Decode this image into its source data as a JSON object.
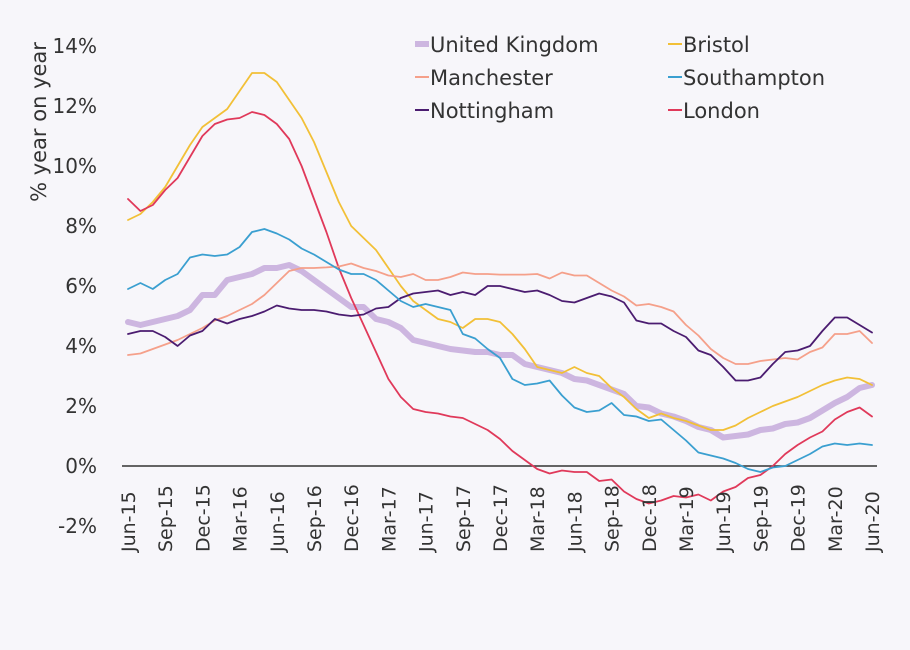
{
  "chart_data": {
    "type": "line",
    "title": "",
    "xlabel": "",
    "ylabel": "% year on year",
    "ylim": [
      -2,
      14
    ],
    "yticks": [
      -2,
      0,
      2,
      4,
      6,
      8,
      10,
      12,
      14
    ],
    "ytick_labels": [
      "-2%",
      "0%",
      "2%",
      "4%",
      "6%",
      "8%",
      "10%",
      "12%",
      "14%"
    ],
    "grid": false,
    "zero_line": true,
    "legend_position": "top-right",
    "x": [
      "Jun-15",
      "Jul-15",
      "Aug-15",
      "Sep-15",
      "Oct-15",
      "Nov-15",
      "Dec-15",
      "Jan-16",
      "Feb-16",
      "Mar-16",
      "Apr-16",
      "May-16",
      "Jun-16",
      "Jul-16",
      "Aug-16",
      "Sep-16",
      "Oct-16",
      "Nov-16",
      "Dec-16",
      "Jan-17",
      "Feb-17",
      "Mar-17",
      "Apr-17",
      "May-17",
      "Jun-17",
      "Jul-17",
      "Aug-17",
      "Sep-17",
      "Oct-17",
      "Nov-17",
      "Dec-17",
      "Jan-18",
      "Feb-18",
      "Mar-18",
      "Apr-18",
      "May-18",
      "Jun-18",
      "Jul-18",
      "Aug-18",
      "Sep-18",
      "Oct-18",
      "Nov-18",
      "Dec-18",
      "Jan-19",
      "Feb-19",
      "Mar-19",
      "Apr-19",
      "May-19",
      "Jun-19",
      "Jul-19",
      "Aug-19",
      "Sep-19",
      "Oct-19",
      "Nov-19",
      "Dec-19",
      "Jan-20",
      "Feb-20",
      "Mar-20",
      "Apr-20",
      "May-20",
      "Jun-20"
    ],
    "xtick_labels": [
      "Jun-15",
      "Sep-15",
      "Dec-15",
      "Mar-16",
      "Jun-16",
      "Sep-16",
      "Dec-16",
      "Mar-17",
      "Jun-17",
      "Sep-17",
      "Dec-17",
      "Mar-18",
      "Jun-18",
      "Sep-18",
      "Dec-18",
      "Mar-19",
      "Jun-19",
      "Sep-19",
      "Dec-19",
      "Mar-20",
      "Jun-20"
    ],
    "series": [
      {
        "name": "United Kingdom",
        "color": "#cdb6e0",
        "width": "thick",
        "values": [
          4.8,
          4.7,
          4.8,
          4.9,
          5.0,
          5.2,
          5.7,
          5.7,
          6.2,
          6.3,
          6.4,
          6.6,
          6.6,
          6.7,
          6.5,
          6.2,
          5.9,
          5.6,
          5.3,
          5.3,
          4.9,
          4.8,
          4.6,
          4.2,
          4.1,
          4.0,
          3.9,
          3.85,
          3.8,
          3.8,
          3.7,
          3.7,
          3.4,
          3.3,
          3.2,
          3.1,
          2.9,
          2.85,
          2.7,
          2.55,
          2.4,
          2.0,
          1.95,
          1.75,
          1.65,
          1.5,
          1.3,
          1.2,
          0.95,
          1.0,
          1.05,
          1.2,
          1.25,
          1.4,
          1.45,
          1.6,
          1.85,
          2.1,
          2.3,
          2.6,
          2.7
        ]
      },
      {
        "name": "Bristol",
        "color": "#f2c037",
        "values": [
          8.2,
          8.4,
          8.8,
          9.3,
          10.0,
          10.7,
          11.3,
          11.6,
          11.9,
          12.5,
          13.1,
          13.1,
          12.8,
          12.2,
          11.6,
          10.8,
          9.8,
          8.8,
          8.0,
          7.6,
          7.2,
          6.6,
          6.0,
          5.5,
          5.2,
          4.9,
          4.8,
          4.6,
          4.9,
          4.9,
          4.8,
          4.4,
          3.9,
          3.3,
          3.2,
          3.1,
          3.3,
          3.1,
          3.0,
          2.6,
          2.3,
          1.9,
          1.6,
          1.75,
          1.6,
          1.5,
          1.35,
          1.2,
          1.2,
          1.35,
          1.6,
          1.8,
          2.0,
          2.15,
          2.3,
          2.5,
          2.7,
          2.85,
          2.95,
          2.9,
          2.7
        ]
      },
      {
        "name": "London",
        "color": "#e0395a",
        "values": [
          8.9,
          8.5,
          8.7,
          9.2,
          9.6,
          10.3,
          11.0,
          11.4,
          11.55,
          11.6,
          11.8,
          11.7,
          11.4,
          10.9,
          10.0,
          8.9,
          7.8,
          6.6,
          5.6,
          4.7,
          3.8,
          2.9,
          2.3,
          1.9,
          1.8,
          1.75,
          1.65,
          1.6,
          1.4,
          1.2,
          0.9,
          0.5,
          0.2,
          -0.1,
          -0.25,
          -0.15,
          -0.2,
          -0.2,
          -0.5,
          -0.45,
          -0.85,
          -1.1,
          -1.25,
          -1.15,
          -1.0,
          -1.05,
          -0.95,
          -1.15,
          -0.85,
          -0.7,
          -0.4,
          -0.3,
          0.0,
          0.4,
          0.7,
          0.95,
          1.15,
          1.55,
          1.8,
          1.95,
          1.65
        ]
      },
      {
        "name": "Manchester",
        "color": "#f5a08a",
        "values": [
          3.7,
          3.75,
          3.9,
          4.05,
          4.2,
          4.4,
          4.6,
          4.85,
          5.0,
          5.2,
          5.4,
          5.7,
          6.1,
          6.5,
          6.6,
          6.6,
          6.62,
          6.65,
          6.75,
          6.6,
          6.5,
          6.35,
          6.3,
          6.4,
          6.2,
          6.2,
          6.3,
          6.45,
          6.4,
          6.4,
          6.38,
          6.38,
          6.38,
          6.4,
          6.25,
          6.45,
          6.35,
          6.35,
          6.1,
          5.85,
          5.65,
          5.35,
          5.4,
          5.3,
          5.15,
          4.7,
          4.35,
          3.9,
          3.6,
          3.4,
          3.4,
          3.5,
          3.55,
          3.6,
          3.55,
          3.8,
          3.95,
          4.4,
          4.4,
          4.5,
          4.1
        ]
      },
      {
        "name": "Nottingham",
        "color": "#4b1c70",
        "values": [
          4.4,
          4.5,
          4.5,
          4.3,
          4.0,
          4.35,
          4.5,
          4.9,
          4.75,
          4.9,
          5.0,
          5.15,
          5.35,
          5.25,
          5.2,
          5.2,
          5.15,
          5.05,
          5.0,
          5.05,
          5.25,
          5.3,
          5.6,
          5.75,
          5.8,
          5.85,
          5.7,
          5.8,
          5.7,
          6.0,
          6.0,
          5.9,
          5.8,
          5.85,
          5.7,
          5.5,
          5.45,
          5.6,
          5.75,
          5.65,
          5.45,
          4.85,
          4.75,
          4.75,
          4.5,
          4.3,
          3.85,
          3.7,
          3.3,
          2.85,
          2.85,
          2.95,
          3.4,
          3.8,
          3.85,
          4.0,
          4.5,
          4.95,
          4.95,
          4.7,
          4.45
        ]
      },
      {
        "name": "Southampton",
        "color": "#3a9fd0",
        "values": [
          5.9,
          6.1,
          5.9,
          6.2,
          6.4,
          6.95,
          7.05,
          7.0,
          7.05,
          7.3,
          7.8,
          7.9,
          7.75,
          7.55,
          7.25,
          7.05,
          6.8,
          6.55,
          6.4,
          6.4,
          6.2,
          5.85,
          5.5,
          5.3,
          5.4,
          5.3,
          5.2,
          4.4,
          4.25,
          3.9,
          3.6,
          2.9,
          2.7,
          2.75,
          2.85,
          2.35,
          1.95,
          1.8,
          1.85,
          2.1,
          1.7,
          1.65,
          1.5,
          1.55,
          1.2,
          0.85,
          0.45,
          0.35,
          0.25,
          0.1,
          -0.1,
          -0.2,
          -0.05,
          0.0,
          0.2,
          0.4,
          0.65,
          0.75,
          0.7,
          0.75,
          0.7
        ]
      }
    ],
    "legend_order": [
      0,
      3,
      4,
      1,
      5,
      2
    ]
  }
}
